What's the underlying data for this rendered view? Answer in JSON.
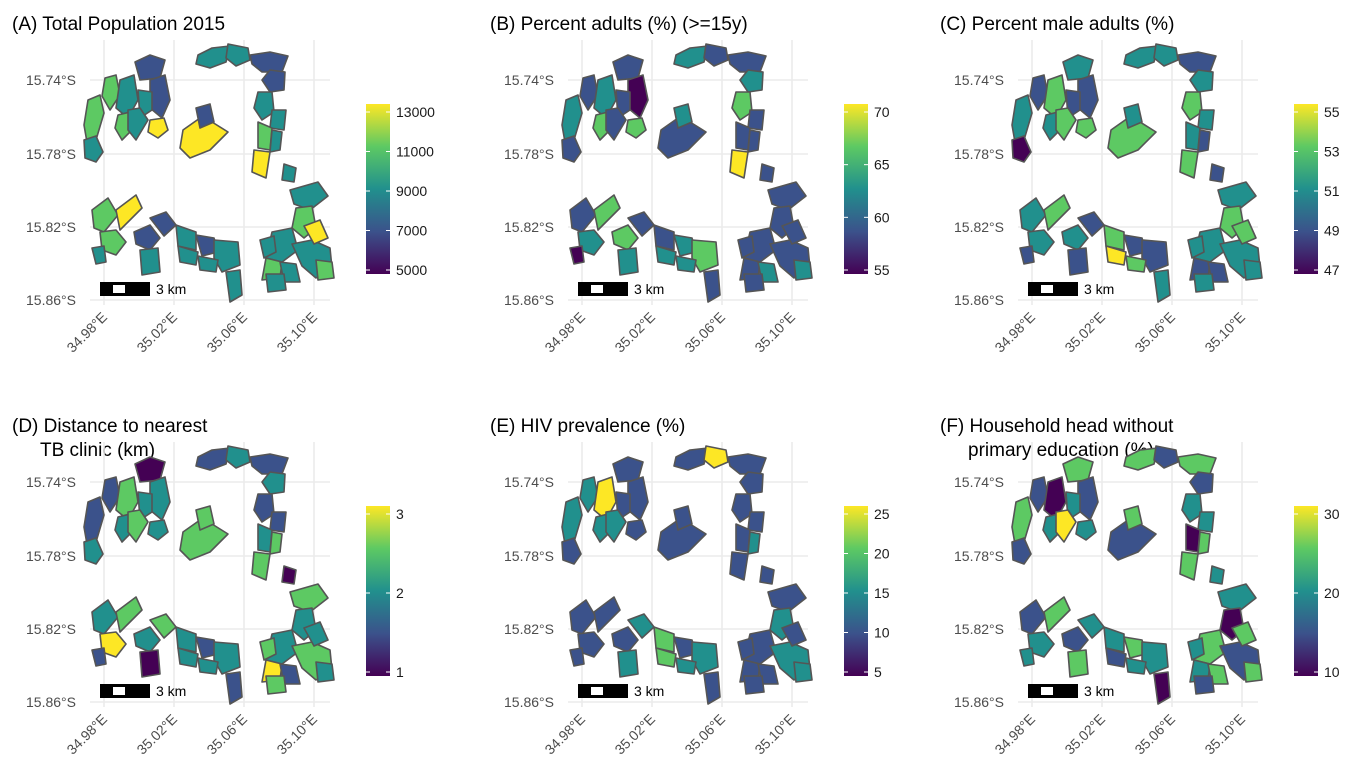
{
  "figure": {
    "lon_ticks": [
      "34.98°E",
      "35.02°E",
      "35.06°E",
      "35.10°E"
    ],
    "lat_ticks": [
      "15.74°S",
      "15.78°S",
      "15.82°S",
      "15.86°S"
    ],
    "scalebar_label": "3 km",
    "palette": [
      "#440154",
      "#3b528b",
      "#21908d",
      "#5dc963",
      "#fde725"
    ],
    "border_color": "#555555"
  },
  "panels": [
    {
      "id": "A",
      "title": [
        "(A) Total Population 2015"
      ],
      "cb_ticks": [
        "13000",
        "11000",
        "9000",
        "7000",
        "5000"
      ],
      "colors": [
        3,
        2,
        3,
        2,
        3,
        1,
        1,
        2,
        2,
        4,
        2,
        2,
        1,
        1,
        2,
        2,
        3,
        2,
        4,
        4,
        1,
        2,
        3,
        3,
        4,
        2,
        1,
        2,
        1,
        2,
        1,
        2,
        2,
        2,
        2,
        2,
        3,
        2,
        2,
        3,
        2,
        4,
        3,
        2,
        2
      ]
    },
    {
      "id": "B",
      "title": [
        "(B) Percent adults (%) (>=15y)"
      ],
      "cb_ticks": [
        "70",
        "65",
        "60",
        "55"
      ],
      "colors": [
        2,
        1,
        1,
        2,
        3,
        1,
        0,
        1,
        1,
        3,
        2,
        1,
        1,
        2,
        3,
        1,
        1,
        1,
        4,
        1,
        2,
        1,
        1,
        2,
        3,
        0,
        3,
        2,
        1,
        1,
        2,
        3,
        1,
        2,
        2,
        1,
        1,
        1,
        1,
        1,
        1,
        1,
        2,
        2,
        1
      ]
    },
    {
      "id": "C",
      "title": [
        "(C) Percent male adults (%)"
      ],
      "cb_ticks": [
        "55",
        "53",
        "51",
        "49",
        "47"
      ],
      "colors": [
        2,
        0,
        1,
        3,
        2,
        2,
        1,
        1,
        3,
        3,
        2,
        2,
        1,
        2,
        3,
        2,
        2,
        1,
        3,
        3,
        2,
        1,
        2,
        2,
        3,
        1,
        2,
        1,
        1,
        3,
        1,
        1,
        2,
        4,
        3,
        2,
        3,
        2,
        2,
        1,
        2,
        3,
        2,
        1,
        2
      ]
    },
    {
      "id": "D",
      "title": [
        "(D) Distance to nearest",
        "TB clinic (km)"
      ],
      "cb_ticks": [
        "3",
        "2",
        "1"
      ],
      "colors": [
        1,
        2,
        1,
        3,
        2,
        0,
        2,
        2,
        3,
        2,
        1,
        2,
        1,
        2,
        1,
        1,
        2,
        3,
        3,
        3,
        3,
        0,
        2,
        4,
        3,
        1,
        2,
        0,
        3,
        2,
        1,
        2,
        1,
        2,
        2,
        3,
        2,
        2,
        3,
        4,
        3,
        2,
        2,
        1,
        3
      ]
    },
    {
      "id": "E",
      "title": [
        "(E) HIV prevalence (%)"
      ],
      "cb_ticks": [
        "25",
        "20",
        "15",
        "10",
        "5"
      ],
      "colors": [
        2,
        1,
        2,
        4,
        2,
        1,
        1,
        1,
        2,
        1,
        1,
        4,
        1,
        1,
        1,
        1,
        1,
        2,
        1,
        1,
        1,
        1,
        1,
        1,
        1,
        1,
        1,
        2,
        2,
        3,
        1,
        2,
        1,
        3,
        2,
        1,
        2,
        1,
        2,
        1,
        1,
        1,
        2,
        1,
        1
      ]
    },
    {
      "id": "F",
      "title": [
        "(F) Household head without",
        "primary education (%)"
      ],
      "cb_ticks": [
        "30",
        "20",
        "10"
      ],
      "colors": [
        3,
        1,
        1,
        0,
        2,
        3,
        1,
        2,
        4,
        2,
        3,
        1,
        3,
        1,
        2,
        2,
        0,
        3,
        3,
        1,
        3,
        2,
        1,
        2,
        3,
        2,
        1,
        3,
        2,
        2,
        3,
        2,
        0,
        1,
        2,
        2,
        0,
        3,
        1,
        2,
        2,
        3,
        3,
        3,
        1
      ]
    }
  ]
}
